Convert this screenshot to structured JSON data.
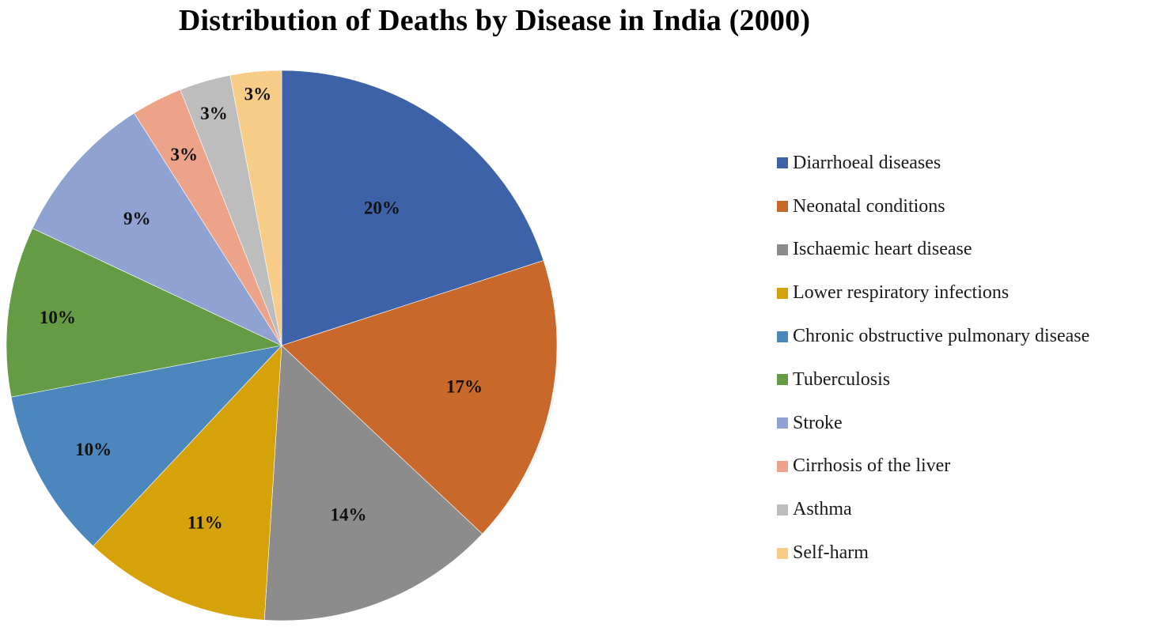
{
  "chart_data": {
    "type": "pie",
    "title": "Distribution of Deaths by Disease in India (2000)",
    "categories": [
      "Diarrhoeal diseases",
      "Neonatal conditions",
      "Ischaemic heart disease",
      "Lower respiratory infections",
      "Chronic obstructive pulmonary disease",
      "Tuberculosis",
      "Stroke",
      "Cirrhosis of the liver",
      "Asthma",
      "Self-harm"
    ],
    "values": [
      20,
      17,
      14,
      11,
      10,
      10,
      9,
      3,
      3,
      3
    ],
    "labels": [
      "20%",
      "17%",
      "14%",
      "11%",
      "10%",
      "10%",
      "9%",
      "3%",
      "3%",
      "3%"
    ],
    "colors": [
      "#3d62a8",
      "#c8682b",
      "#8c8c8c",
      "#d6a20a",
      "#4b86bd",
      "#649b44",
      "#8fa2d2",
      "#eda38a",
      "#bdbdbd",
      "#f7cc87"
    ],
    "legend_position": "right",
    "start_angle": "12 o'clock",
    "direction": "clockwise"
  }
}
